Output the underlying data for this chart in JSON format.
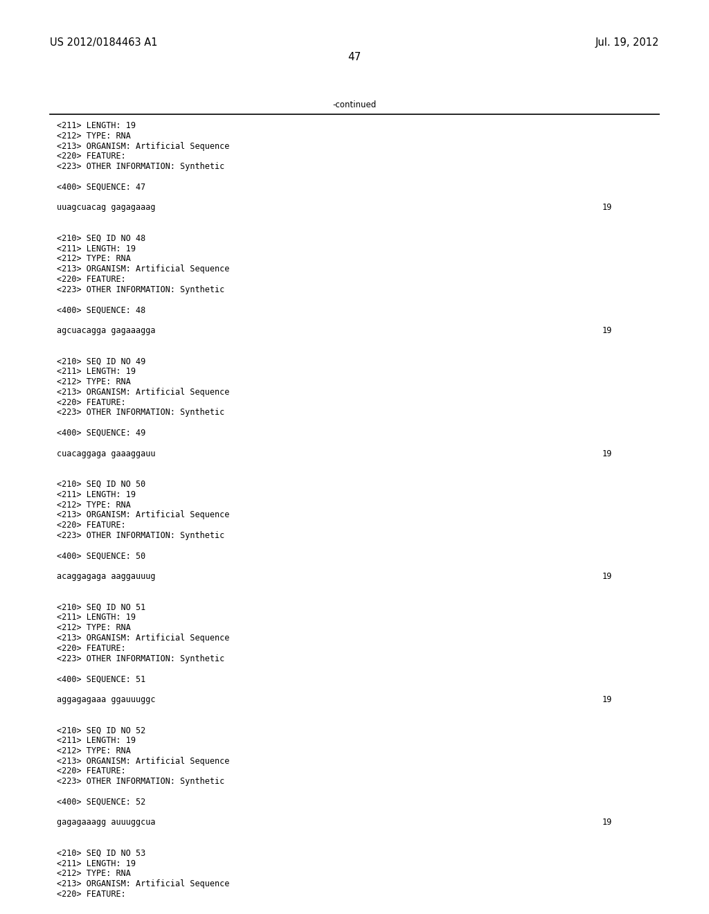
{
  "background_color": "#ffffff",
  "header_left": "US 2012/0184463 A1",
  "header_right": "Jul. 19, 2012",
  "page_number": "47",
  "continued_text": "-continued",
  "header_font_size": 10.5,
  "body_font_size": 8.5,
  "page_num_font_size": 11,
  "content_lines": [
    {
      "text": "<211> LENGTH: 19",
      "right_text": ""
    },
    {
      "text": "<212> TYPE: RNA",
      "right_text": ""
    },
    {
      "text": "<213> ORGANISM: Artificial Sequence",
      "right_text": ""
    },
    {
      "text": "<220> FEATURE:",
      "right_text": ""
    },
    {
      "text": "<223> OTHER INFORMATION: Synthetic",
      "right_text": ""
    },
    {
      "text": "",
      "right_text": ""
    },
    {
      "text": "<400> SEQUENCE: 47",
      "right_text": ""
    },
    {
      "text": "",
      "right_text": ""
    },
    {
      "text": "uuagcuacag gagagaaag",
      "right_text": "19"
    },
    {
      "text": "",
      "right_text": ""
    },
    {
      "text": "",
      "right_text": ""
    },
    {
      "text": "<210> SEQ ID NO 48",
      "right_text": ""
    },
    {
      "text": "<211> LENGTH: 19",
      "right_text": ""
    },
    {
      "text": "<212> TYPE: RNA",
      "right_text": ""
    },
    {
      "text": "<213> ORGANISM: Artificial Sequence",
      "right_text": ""
    },
    {
      "text": "<220> FEATURE:",
      "right_text": ""
    },
    {
      "text": "<223> OTHER INFORMATION: Synthetic",
      "right_text": ""
    },
    {
      "text": "",
      "right_text": ""
    },
    {
      "text": "<400> SEQUENCE: 48",
      "right_text": ""
    },
    {
      "text": "",
      "right_text": ""
    },
    {
      "text": "agcuacagga gagaaagga",
      "right_text": "19"
    },
    {
      "text": "",
      "right_text": ""
    },
    {
      "text": "",
      "right_text": ""
    },
    {
      "text": "<210> SEQ ID NO 49",
      "right_text": ""
    },
    {
      "text": "<211> LENGTH: 19",
      "right_text": ""
    },
    {
      "text": "<212> TYPE: RNA",
      "right_text": ""
    },
    {
      "text": "<213> ORGANISM: Artificial Sequence",
      "right_text": ""
    },
    {
      "text": "<220> FEATURE:",
      "right_text": ""
    },
    {
      "text": "<223> OTHER INFORMATION: Synthetic",
      "right_text": ""
    },
    {
      "text": "",
      "right_text": ""
    },
    {
      "text": "<400> SEQUENCE: 49",
      "right_text": ""
    },
    {
      "text": "",
      "right_text": ""
    },
    {
      "text": "cuacaggaga gaaaggauu",
      "right_text": "19"
    },
    {
      "text": "",
      "right_text": ""
    },
    {
      "text": "",
      "right_text": ""
    },
    {
      "text": "<210> SEQ ID NO 50",
      "right_text": ""
    },
    {
      "text": "<211> LENGTH: 19",
      "right_text": ""
    },
    {
      "text": "<212> TYPE: RNA",
      "right_text": ""
    },
    {
      "text": "<213> ORGANISM: Artificial Sequence",
      "right_text": ""
    },
    {
      "text": "<220> FEATURE:",
      "right_text": ""
    },
    {
      "text": "<223> OTHER INFORMATION: Synthetic",
      "right_text": ""
    },
    {
      "text": "",
      "right_text": ""
    },
    {
      "text": "<400> SEQUENCE: 50",
      "right_text": ""
    },
    {
      "text": "",
      "right_text": ""
    },
    {
      "text": "acaggagaga aaggauuug",
      "right_text": "19"
    },
    {
      "text": "",
      "right_text": ""
    },
    {
      "text": "",
      "right_text": ""
    },
    {
      "text": "<210> SEQ ID NO 51",
      "right_text": ""
    },
    {
      "text": "<211> LENGTH: 19",
      "right_text": ""
    },
    {
      "text": "<212> TYPE: RNA",
      "right_text": ""
    },
    {
      "text": "<213> ORGANISM: Artificial Sequence",
      "right_text": ""
    },
    {
      "text": "<220> FEATURE:",
      "right_text": ""
    },
    {
      "text": "<223> OTHER INFORMATION: Synthetic",
      "right_text": ""
    },
    {
      "text": "",
      "right_text": ""
    },
    {
      "text": "<400> SEQUENCE: 51",
      "right_text": ""
    },
    {
      "text": "",
      "right_text": ""
    },
    {
      "text": "aggagagaaa ggauuuggc",
      "right_text": "19"
    },
    {
      "text": "",
      "right_text": ""
    },
    {
      "text": "",
      "right_text": ""
    },
    {
      "text": "<210> SEQ ID NO 52",
      "right_text": ""
    },
    {
      "text": "<211> LENGTH: 19",
      "right_text": ""
    },
    {
      "text": "<212> TYPE: RNA",
      "right_text": ""
    },
    {
      "text": "<213> ORGANISM: Artificial Sequence",
      "right_text": ""
    },
    {
      "text": "<220> FEATURE:",
      "right_text": ""
    },
    {
      "text": "<223> OTHER INFORMATION: Synthetic",
      "right_text": ""
    },
    {
      "text": "",
      "right_text": ""
    },
    {
      "text": "<400> SEQUENCE: 52",
      "right_text": ""
    },
    {
      "text": "",
      "right_text": ""
    },
    {
      "text": "gagagaaagg auuuggcua",
      "right_text": "19"
    },
    {
      "text": "",
      "right_text": ""
    },
    {
      "text": "",
      "right_text": ""
    },
    {
      "text": "<210> SEQ ID NO 53",
      "right_text": ""
    },
    {
      "text": "<211> LENGTH: 19",
      "right_text": ""
    },
    {
      "text": "<212> TYPE: RNA",
      "right_text": ""
    },
    {
      "text": "<213> ORGANISM: Artificial Sequence",
      "right_text": ""
    },
    {
      "text": "<220> FEATURE:",
      "right_text": ""
    }
  ]
}
